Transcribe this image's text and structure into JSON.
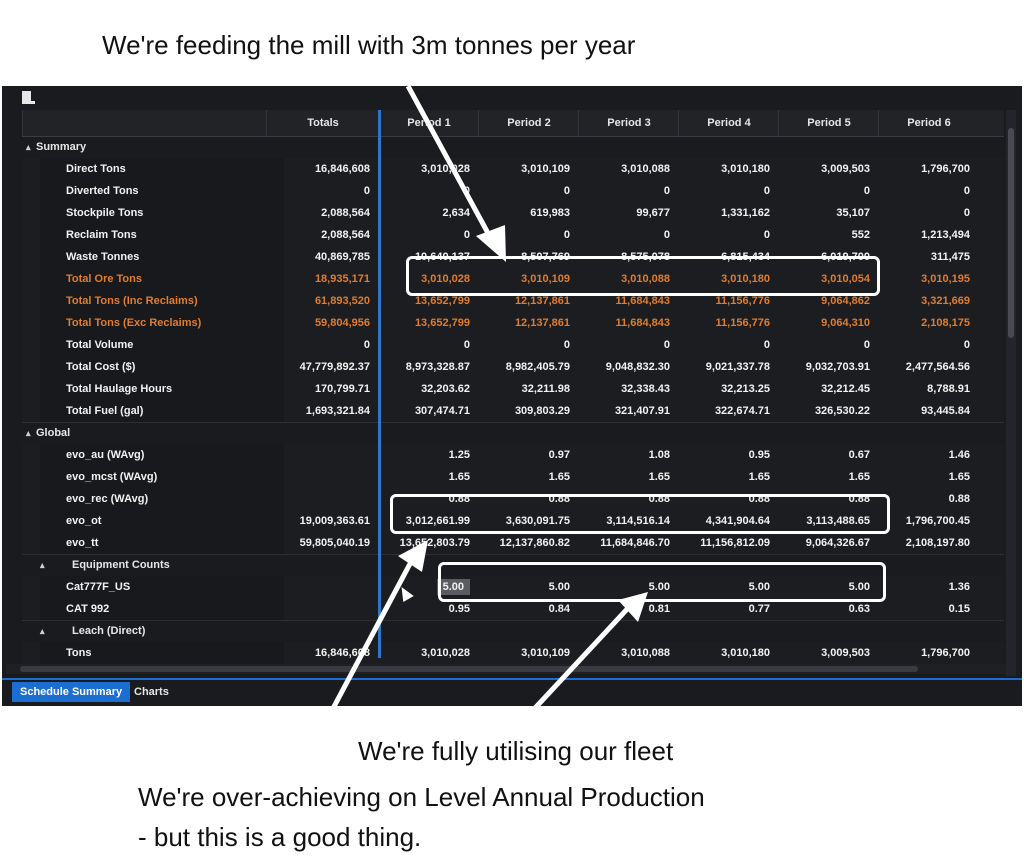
{
  "captions": {
    "top": "We're feeding the mill with 3m tonnes per year",
    "fleet": "We're fully utilising our fleet",
    "over_1": "We're over-achieving on Level Annual Production",
    "over_2": "- but this is a good thing."
  },
  "columns": [
    "",
    "Totals",
    "Period 1",
    "Period 2",
    "Period 3",
    "Period 4",
    "Period 5",
    "Period 6"
  ],
  "groups": [
    {
      "label": "Summary",
      "rows": [
        {
          "label": "Direct Tons",
          "orange": false,
          "values": [
            "16,846,608",
            "3,010,028",
            "3,010,109",
            "3,010,088",
            "3,010,180",
            "3,009,503",
            "1,796,700"
          ]
        },
        {
          "label": "Diverted Tons",
          "orange": false,
          "values": [
            "0",
            "0",
            "0",
            "0",
            "0",
            "0",
            "0"
          ]
        },
        {
          "label": "Stockpile Tons",
          "orange": false,
          "values": [
            "2,088,564",
            "2,634",
            "619,983",
            "99,677",
            "1,331,162",
            "35,107",
            "0"
          ]
        },
        {
          "label": "Reclaim Tons",
          "orange": false,
          "values": [
            "2,088,564",
            "0",
            "0",
            "0",
            "0",
            "552",
            "1,213,494"
          ]
        },
        {
          "label": "Waste Tonnes",
          "orange": false,
          "values": [
            "40,869,785",
            "10,640,137",
            "8,507,769",
            "8,575,078",
            "6,815,434",
            "6,019,700",
            "311,475"
          ]
        },
        {
          "label": "Total Ore Tons",
          "orange": true,
          "values": [
            "18,935,171",
            "3,010,028",
            "3,010,109",
            "3,010,088",
            "3,010,180",
            "3,010,054",
            "3,010,195"
          ]
        },
        {
          "label": "Total Tons (Inc Reclaims)",
          "orange": true,
          "values": [
            "61,893,520",
            "13,652,799",
            "12,137,861",
            "11,684,843",
            "11,156,776",
            "9,064,862",
            "3,321,669"
          ]
        },
        {
          "label": "Total Tons (Exc Reclaims)",
          "orange": true,
          "values": [
            "59,804,956",
            "13,652,799",
            "12,137,861",
            "11,684,843",
            "11,156,776",
            "9,064,310",
            "2,108,175"
          ]
        },
        {
          "label": "Total Volume",
          "orange": false,
          "values": [
            "0",
            "0",
            "0",
            "0",
            "0",
            "0",
            "0"
          ]
        },
        {
          "label": "Total Cost ($)",
          "orange": false,
          "values": [
            "47,779,892.37",
            "8,973,328.87",
            "8,982,405.79",
            "9,048,832.30",
            "9,021,337.78",
            "9,032,703.91",
            "2,477,564.56"
          ]
        },
        {
          "label": "Total Haulage Hours",
          "orange": false,
          "values": [
            "170,799.71",
            "32,203.62",
            "32,211.98",
            "32,338.43",
            "32,213.25",
            "32,212.45",
            "8,788.91"
          ]
        },
        {
          "label": "Total Fuel (gal)",
          "orange": false,
          "values": [
            "1,693,321.84",
            "307,474.71",
            "309,803.29",
            "321,407.91",
            "322,674.71",
            "326,530.22",
            "93,445.84"
          ]
        }
      ]
    },
    {
      "label": "Global",
      "rows": [
        {
          "label": "evo_au (WAvg)",
          "orange": false,
          "values": [
            "",
            "1.25",
            "0.97",
            "1.08",
            "0.95",
            "0.67",
            "1.46"
          ]
        },
        {
          "label": "evo_mcst (WAvg)",
          "orange": false,
          "values": [
            "",
            "1.65",
            "1.65",
            "1.65",
            "1.65",
            "1.65",
            "1.65"
          ]
        },
        {
          "label": "evo_rec (WAvg)",
          "orange": false,
          "values": [
            "",
            "0.88",
            "0.88",
            "0.88",
            "0.88",
            "0.88",
            "0.88"
          ]
        },
        {
          "label": "evo_ot",
          "orange": false,
          "values": [
            "19,009,363.61",
            "3,012,661.99",
            "3,630,091.75",
            "3,114,516.14",
            "4,341,904.64",
            "3,113,488.65",
            "1,796,700.45"
          ]
        },
        {
          "label": "evo_tt",
          "orange": false,
          "values": [
            "59,805,040.19",
            "13,652,803.79",
            "12,137,860.82",
            "11,684,846.70",
            "11,156,812.09",
            "9,064,326.67",
            "2,108,197.80"
          ]
        }
      ]
    },
    {
      "label": "Equipment Counts",
      "rows": [
        {
          "label": "Cat777F_US",
          "orange": false,
          "values": [
            "",
            "5.00",
            "5.00",
            "5.00",
            "5.00",
            "5.00",
            "1.36"
          ]
        },
        {
          "label": "CAT 992",
          "orange": false,
          "values": [
            "",
            "0.95",
            "0.84",
            "0.81",
            "0.77",
            "0.63",
            "0.15"
          ]
        }
      ]
    },
    {
      "label": "Leach (Direct)",
      "rows": [
        {
          "label": "Tons",
          "orange": false,
          "values": [
            "16,846,608",
            "3,010,028",
            "3,010,109",
            "3,010,088",
            "3,010,180",
            "3,009,503",
            "1,796,700"
          ]
        }
      ]
    }
  ],
  "tabs": [
    "Schedule Summary",
    "Charts"
  ],
  "colors": {
    "orange": "#e07d2e",
    "accent_blue": "#1c6fd0",
    "background": "#1a1b1e"
  }
}
